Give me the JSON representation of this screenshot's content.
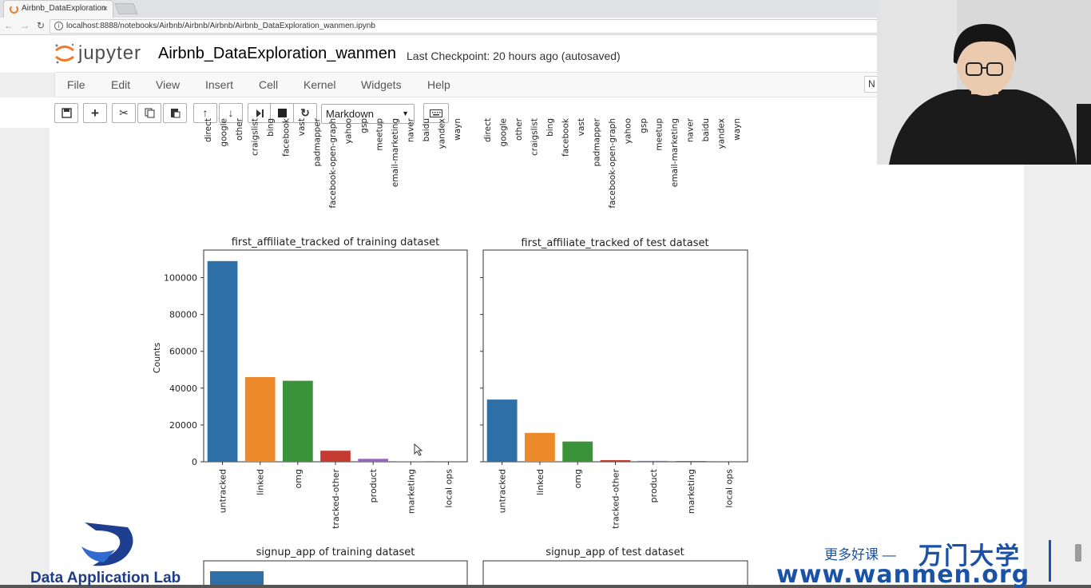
{
  "browser": {
    "tab_title": "Airbnb_DataExploration",
    "tab_close": "×",
    "url": "localhost:8888/notebooks/Airbnb/Airbnb/Airbnb/Airbnb_DataExploration_wanmen.ipynb"
  },
  "jupyter": {
    "logo_text": "jupyter",
    "notebook_name": "Airbnb_DataExploration_wanmen",
    "checkpoint": "Last Checkpoint: 20 hours ago (autosaved)",
    "kernel_indicator": "N",
    "menu": [
      "File",
      "Edit",
      "View",
      "Insert",
      "Cell",
      "Kernel",
      "Widgets",
      "Help"
    ],
    "cell_type": "Markdown",
    "toolbar_icons": [
      "save-icon",
      "plus-icon",
      "cut-icon",
      "copy-icon",
      "paste-icon",
      "arrow-up-icon",
      "arrow-down-icon",
      "run-icon",
      "stop-icon",
      "restart-icon",
      "keyboard-icon"
    ]
  },
  "top_tick_labels": [
    "direct",
    "google",
    "other",
    "craigslist",
    "bing",
    "facebook",
    "vast",
    "padmapper",
    "facebook-open-graph",
    "yahoo",
    "gsp",
    "meetup",
    "email-marketing",
    "naver",
    "baidu",
    "yandex",
    "wayn"
  ],
  "bottom_chart_titles": [
    "signup_app of training dataset",
    "signup_app of test dataset"
  ],
  "watermark": {
    "left_text": "Data Application Lab",
    "cn_sub": "更多好课 —",
    "cn_title": "万门大学",
    "url": "www.wanmen.org"
  },
  "colors": {
    "blue": "#2e6fa8",
    "orange": "#ec8a2b",
    "green": "#3a923a",
    "red": "#c53a32",
    "purple": "#9467bd",
    "brown": "#8c564b",
    "pink": "#e377c2"
  },
  "chart_data": [
    {
      "type": "bar",
      "title": "first_affiliate_tracked of training dataset",
      "ylabel": "Counts",
      "xlabel": "",
      "categories": [
        "untracked",
        "linked",
        "omg",
        "tracked-other",
        "product",
        "marketing",
        "local ops"
      ],
      "values": [
        109000,
        46000,
        44000,
        6000,
        1600,
        130,
        30
      ],
      "ylim": [
        0,
        115000
      ],
      "yticks": [
        0,
        20000,
        40000,
        60000,
        80000,
        100000
      ]
    },
    {
      "type": "bar",
      "title": "first_affiliate_tracked of test dataset",
      "ylabel": "",
      "xlabel": "",
      "categories": [
        "untracked",
        "linked",
        "omg",
        "tracked-other",
        "product",
        "marketing",
        "local ops"
      ],
      "values": [
        33800,
        15700,
        11000,
        900,
        500,
        400,
        20
      ],
      "ylim": [
        0,
        115000
      ],
      "yticks": [
        0,
        20000,
        40000,
        60000,
        80000,
        100000
      ]
    }
  ]
}
